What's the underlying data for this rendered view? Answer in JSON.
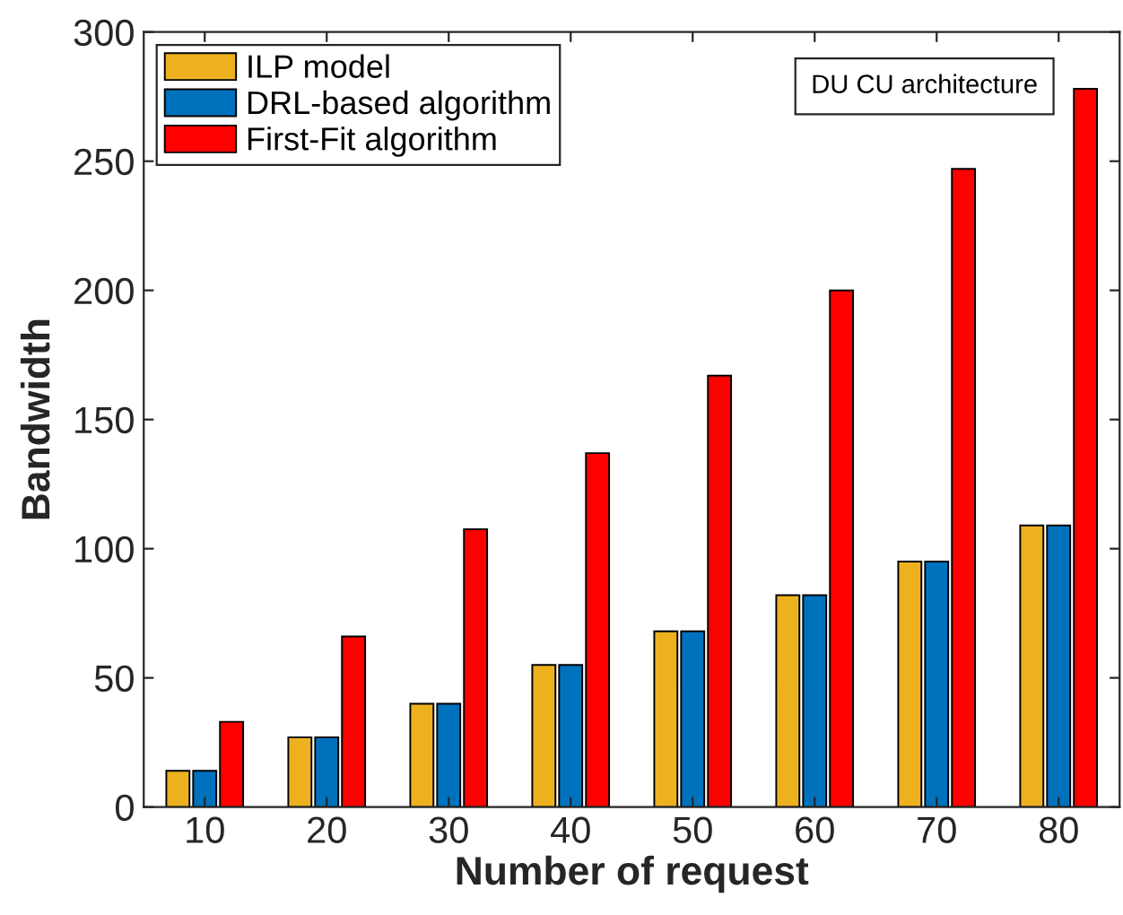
{
  "chart_data": {
    "type": "bar",
    "xlabel": "Number of request",
    "ylabel": "Bandwidth",
    "categories": [
      "10",
      "20",
      "30",
      "40",
      "50",
      "60",
      "70",
      "80"
    ],
    "series": [
      {
        "name": "ILP model",
        "color": "#edb120",
        "values": [
          14,
          27,
          40,
          55,
          68,
          82,
          95,
          109
        ]
      },
      {
        "name": "DRL-based algorithm",
        "color": "#0072bd",
        "values": [
          14,
          27,
          40,
          55,
          68,
          82,
          95,
          109
        ]
      },
      {
        "name": "First-Fit algorithm",
        "color": "#ff0000",
        "values": [
          33,
          66,
          107.5,
          137,
          167,
          200,
          247,
          278
        ]
      }
    ],
    "ylim": [
      0,
      300
    ],
    "yticks": [
      0,
      50,
      100,
      150,
      200,
      250,
      300
    ],
    "legend": "top left",
    "grid": false,
    "annotations": [
      "DU CU architecture"
    ]
  }
}
